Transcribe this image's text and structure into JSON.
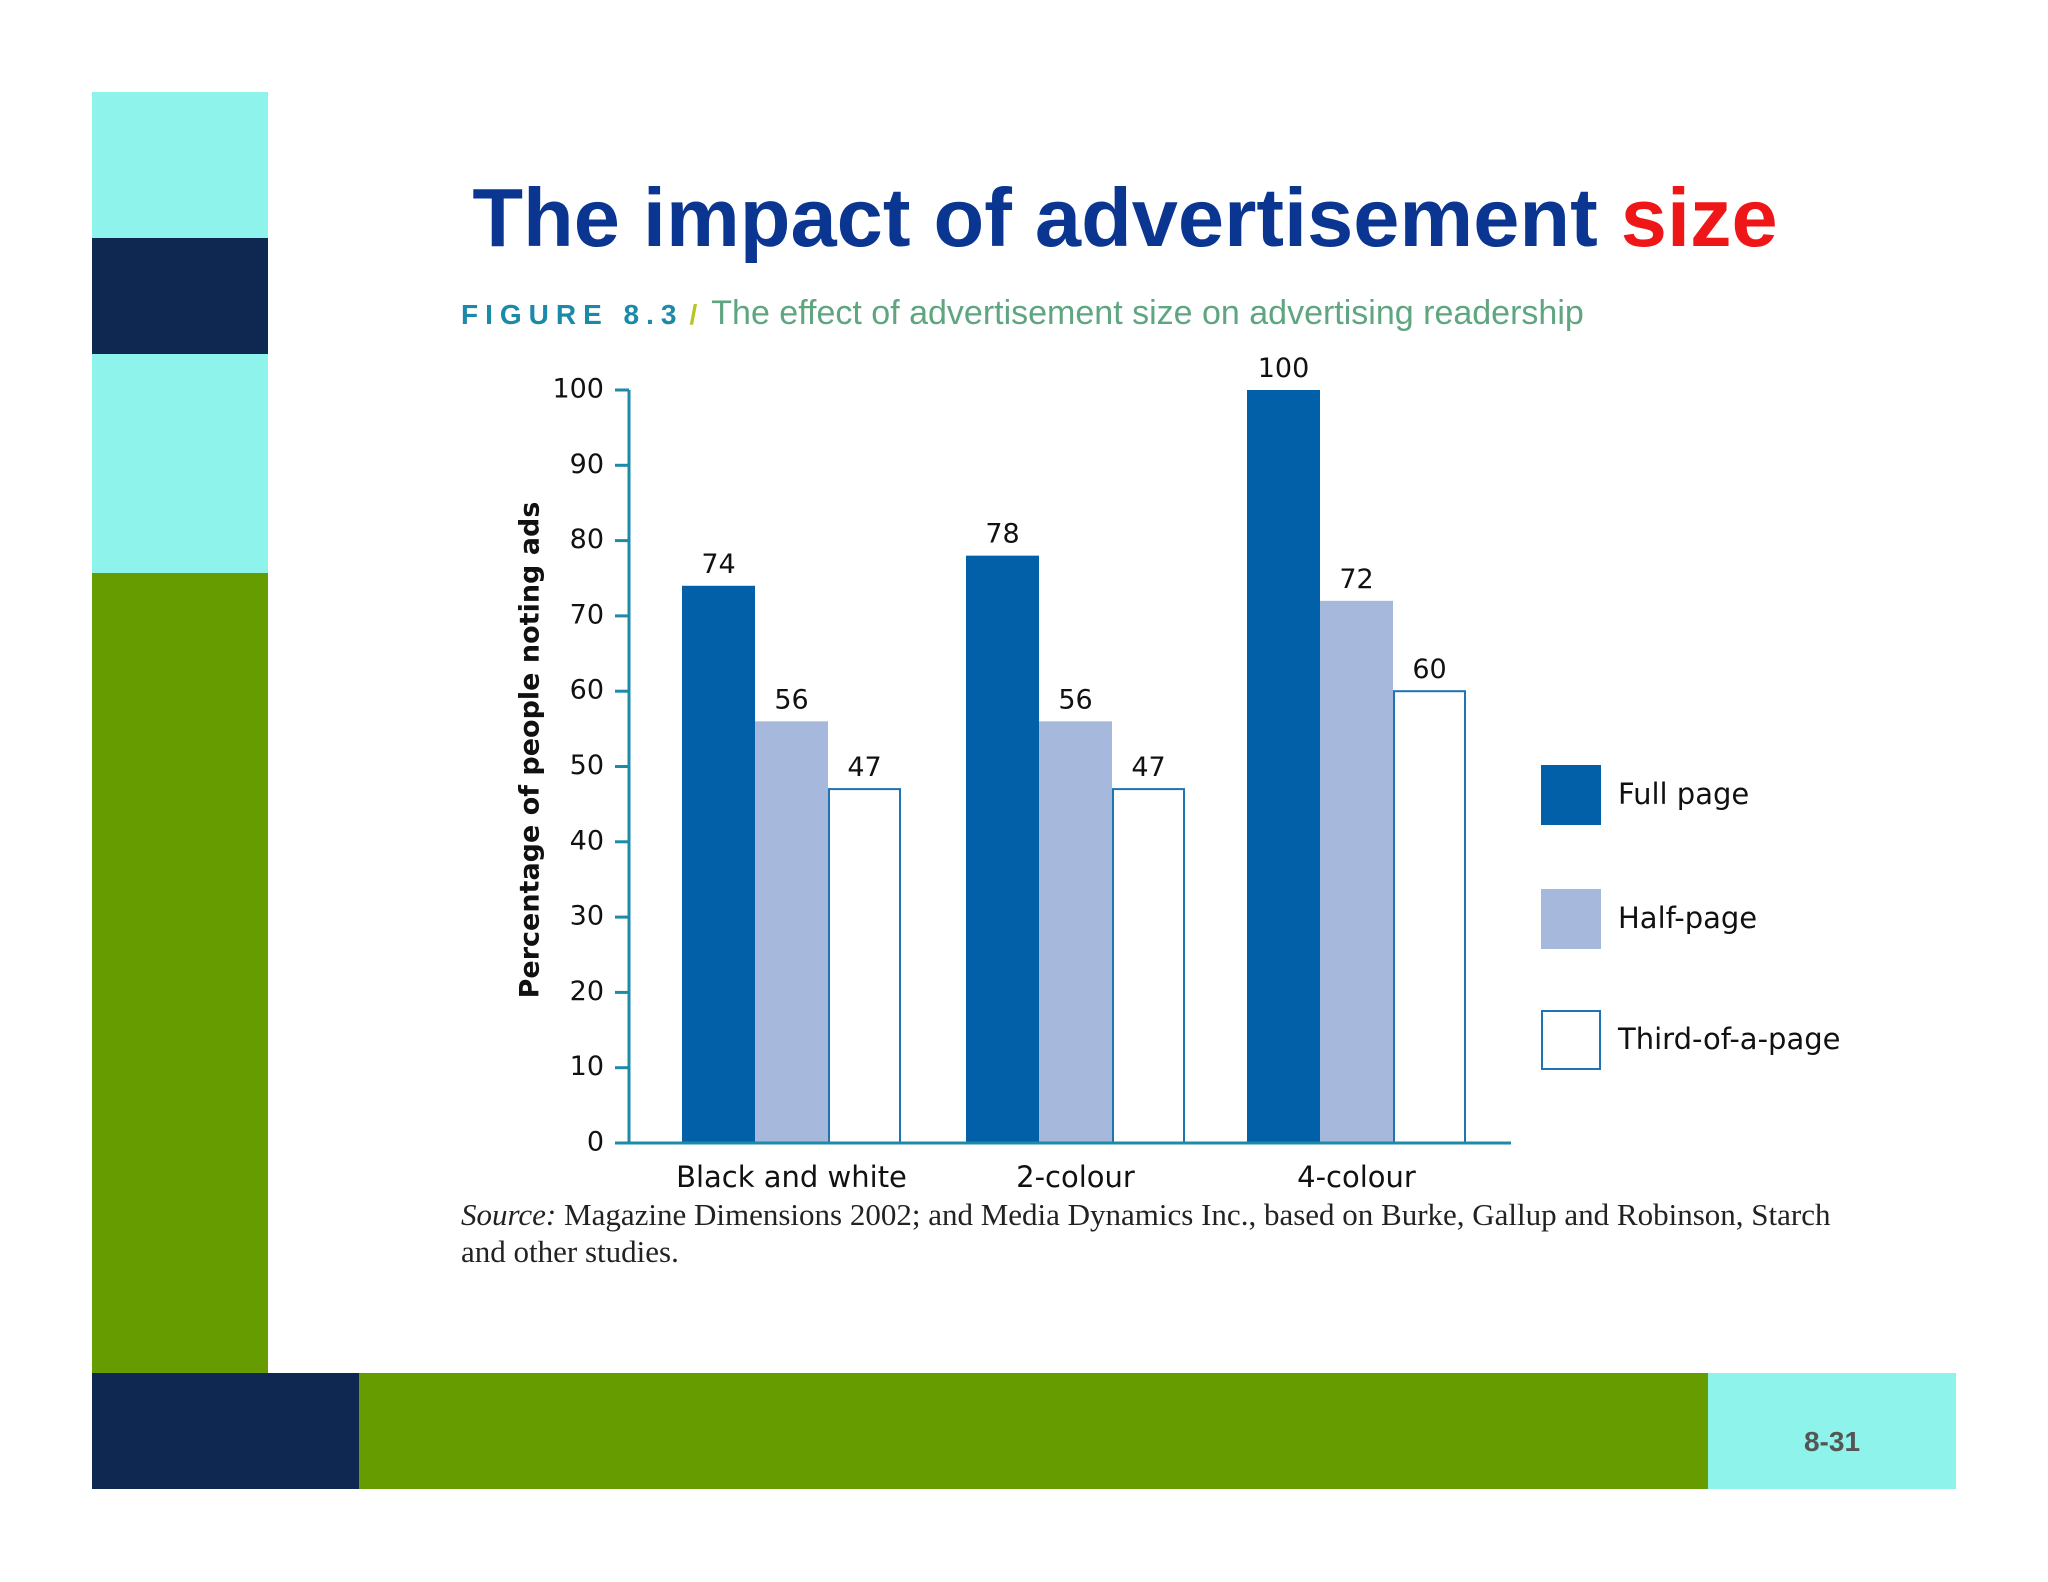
{
  "slide": {
    "title_main": "The impact of advertisement ",
    "title_highlight": "size",
    "page_number": "8-31"
  },
  "figure": {
    "label": "FIGURE 8.3",
    "separator": "/",
    "caption": "The effect of advertisement size on advertising readership"
  },
  "source": {
    "label": "Source:",
    "text": " Magazine Dimensions 2002; and Media Dynamics Inc., based on Burke, Gallup and Robinson, Starch and other studies."
  },
  "colors": {
    "navy": "#0e2852",
    "cyan": "#8ef3ea",
    "green": "#669c00",
    "title": "#0a3591",
    "title_highlight": "#ee1616"
  },
  "chart_data": {
    "type": "bar",
    "title": "The effect of advertisement size on advertising readership",
    "xlabel": "",
    "ylabel": "Percentage of people noting ads",
    "ylim": [
      0,
      100
    ],
    "yticks": [
      0,
      10,
      20,
      30,
      40,
      50,
      60,
      70,
      80,
      90,
      100
    ],
    "grid": false,
    "legend_position": "right",
    "categories": [
      "Black and white",
      "2-colour",
      "4-colour"
    ],
    "series": [
      {
        "name": "Full page",
        "values": [
          74,
          78,
          100
        ],
        "color": "#0260a8",
        "stroke": "#0260a8"
      },
      {
        "name": "Half-page",
        "values": [
          56,
          56,
          72
        ],
        "color": "#a6b8db",
        "stroke": "#a6b8db"
      },
      {
        "name": "Third-of-a-page",
        "values": [
          47,
          47,
          60
        ],
        "color": "#ffffff",
        "stroke": "#1f74b3"
      }
    ]
  }
}
